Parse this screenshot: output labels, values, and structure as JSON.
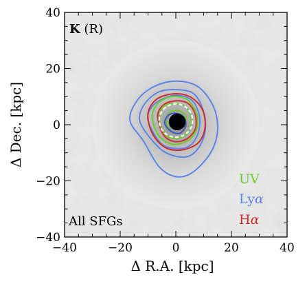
{
  "chart_data": {
    "type": "heatmap",
    "panel_label_bold": "K",
    "panel_label_rest": " (R)",
    "sample_label": "All SFGs",
    "xlabel": "Δ R.A. [kpc]",
    "ylabel": "Δ Dec. [kpc]",
    "xlim": [
      -40,
      40
    ],
    "ylim": [
      -40,
      40
    ],
    "xticks": [
      -40,
      -20,
      0,
      20,
      40
    ],
    "yticks": [
      -40,
      -20,
      0,
      20,
      40
    ],
    "grid": false,
    "legend_position": "bottom-right",
    "legend": [
      {
        "label_main": "UV",
        "label_greek": "",
        "color": "#6ccb2a"
      },
      {
        "label_main": "Ly",
        "label_greek": "α",
        "color": "#5b84e8"
      },
      {
        "label_main": "H",
        "label_greek": "α",
        "color": "#d62a2a"
      }
    ],
    "background_map": {
      "description_color_low": "#ffffff",
      "description_color_high": "#000000",
      "smooth_halo_peak": [
        0,
        0
      ]
    },
    "contours": [
      {
        "series": "Lyα",
        "color": "#5b84e8",
        "level": 1,
        "points": [
          [
            -16.5,
            1.5
          ],
          [
            -14,
            8.5
          ],
          [
            -8,
            13.5
          ],
          [
            0,
            15.5
          ],
          [
            8,
            13.5
          ],
          [
            13.5,
            6.5
          ],
          [
            15,
            -2
          ],
          [
            12.5,
            -10
          ],
          [
            6,
            -17
          ],
          [
            0,
            -18.5
          ],
          [
            -6,
            -15
          ],
          [
            -11.5,
            -6
          ]
        ]
      },
      {
        "series": "Lyα",
        "color": "#5b84e8",
        "level": 2,
        "points": [
          [
            -13,
            1.5
          ],
          [
            -11.5,
            7
          ],
          [
            -6.5,
            11.5
          ],
          [
            0,
            12.5
          ],
          [
            6.5,
            11
          ],
          [
            10,
            4.5
          ],
          [
            10.5,
            -2.5
          ],
          [
            8,
            -8.5
          ],
          [
            3.5,
            -11.5
          ],
          [
            -3.5,
            -10
          ],
          [
            -9,
            -5
          ]
        ]
      },
      {
        "series": "Lyα",
        "color": "#5b84e8",
        "level": 3,
        "points": [
          [
            -10,
            1.5
          ],
          [
            -8.5,
            6.5
          ],
          [
            -4,
            9.5
          ],
          [
            1,
            10.5
          ],
          [
            6,
            8.5
          ],
          [
            8.5,
            3
          ],
          [
            8,
            -3
          ],
          [
            5,
            -7.5
          ],
          [
            0,
            -8.5
          ],
          [
            -5.5,
            -6.5
          ]
        ]
      },
      {
        "series": "Hα",
        "color": "#d62a2a",
        "level": 1,
        "points": [
          [
            -10,
            4
          ],
          [
            -7,
            9
          ],
          [
            -1,
            11
          ],
          [
            5,
            10
          ],
          [
            9.5,
            5.5
          ],
          [
            10.5,
            -1
          ],
          [
            8,
            -6.5
          ],
          [
            2,
            -9
          ],
          [
            -4,
            -8
          ],
          [
            -8.5,
            -3
          ]
        ]
      },
      {
        "series": "Hα",
        "color": "#d62a2a",
        "level": 2,
        "points": [
          [
            -6.5,
            3
          ],
          [
            -4.5,
            7
          ],
          [
            0,
            8.5
          ],
          [
            4.5,
            7.5
          ],
          [
            7,
            3.5
          ],
          [
            7,
            -1.5
          ],
          [
            4,
            -5
          ],
          [
            -0.5,
            -6
          ],
          [
            -4.5,
            -3.5
          ]
        ]
      },
      {
        "series": "UV",
        "color": "#6ccb2a",
        "level": 1,
        "points": [
          [
            -8.5,
            2.5
          ],
          [
            -6.5,
            7.5
          ],
          [
            -1.5,
            10
          ],
          [
            4,
            9
          ],
          [
            7.5,
            4
          ],
          [
            7.5,
            -1.5
          ],
          [
            4.5,
            -5.5
          ],
          [
            -1,
            -7
          ],
          [
            -6,
            -4
          ]
        ]
      },
      {
        "series": "UV",
        "color": "#6ccb2a",
        "level": 2,
        "points": [
          [
            -6,
            2
          ],
          [
            -4.5,
            6.5
          ],
          [
            -0.5,
            7.5
          ],
          [
            3.5,
            6.5
          ],
          [
            5.5,
            2.5
          ],
          [
            5,
            -2
          ],
          [
            2,
            -4.5
          ],
          [
            -2.5,
            -4.5
          ],
          [
            -5,
            -1.5
          ]
        ]
      },
      {
        "series": "UV",
        "color": "#6ccb2a",
        "level": 3,
        "points": [
          [
            -3.5,
            1.5
          ],
          [
            -2,
            4.5
          ],
          [
            1,
            5
          ],
          [
            3.5,
            3
          ],
          [
            3.5,
            -1
          ],
          [
            1.5,
            -3
          ],
          [
            -1.5,
            -2.5
          ]
        ]
      },
      {
        "series": "Lyα",
        "color": "#3d4fd0",
        "level": 4,
        "points": [
          [
            -4,
            0.5
          ],
          [
            -2.5,
            3.5
          ],
          [
            0.5,
            4
          ],
          [
            3,
            2.5
          ],
          [
            3.5,
            -0.5
          ],
          [
            1.5,
            -3
          ],
          [
            -1.5,
            -2.5
          ]
        ]
      }
    ],
    "core": {
      "color": "#000000",
      "center": [
        0.5,
        1
      ],
      "radius": 3
    },
    "dashed_circle": {
      "color": "#ffffff",
      "center": [
        0,
        1.5
      ],
      "radius": 6
    }
  }
}
